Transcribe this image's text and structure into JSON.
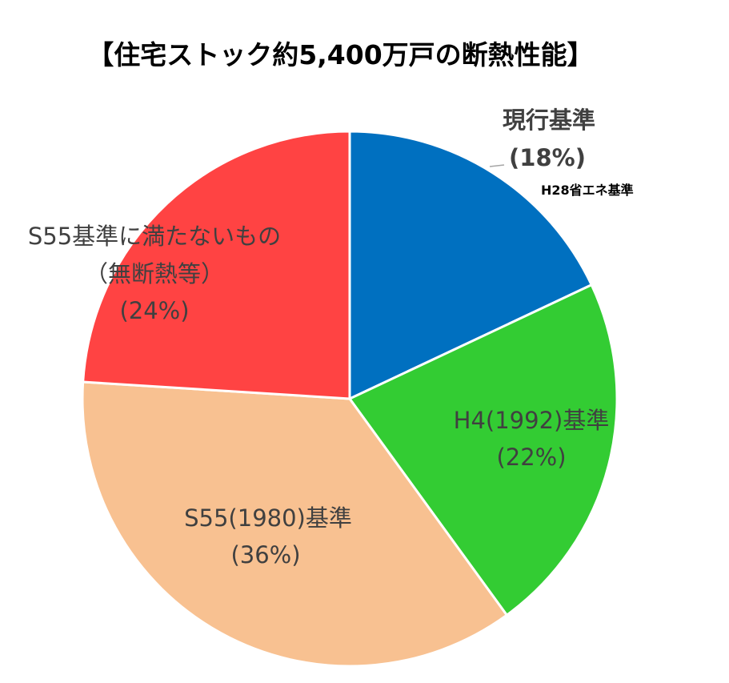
{
  "chart_data": {
    "type": "pie",
    "title": "【住宅ストック約5,400万戸の断熱性能】",
    "start": "top",
    "direction": "clockwise",
    "slices": [
      {
        "label": "現行基準",
        "percent_label": "(18%)",
        "value": 18,
        "color": "#0070C0",
        "note": "H28省エネ基準"
      },
      {
        "label": "H4(1992)基準",
        "percent_label": "(22%)",
        "value": 22,
        "color": "#33CC33"
      },
      {
        "label": "S55(1980)基準",
        "percent_label": "(36%)",
        "value": 36,
        "color": "#F8C191"
      },
      {
        "label": "S55基準に満たないもの",
        "label2": "（無断熱等）",
        "percent_label": "(24%)",
        "value": 24,
        "color": "#FF4343"
      }
    ]
  }
}
